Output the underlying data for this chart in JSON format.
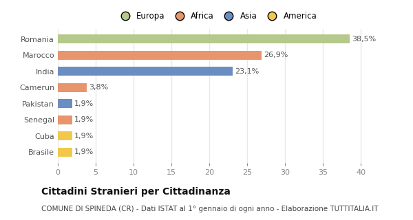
{
  "categories": [
    "Brasile",
    "Cuba",
    "Senegal",
    "Pakistan",
    "Camerun",
    "India",
    "Marocco",
    "Romania"
  ],
  "values": [
    1.9,
    1.9,
    1.9,
    1.9,
    3.8,
    23.1,
    26.9,
    38.5
  ],
  "labels": [
    "1,9%",
    "1,9%",
    "1,9%",
    "1,9%",
    "3,8%",
    "23,1%",
    "26,9%",
    "38,5%"
  ],
  "colors": [
    "#f2c84b",
    "#f2c84b",
    "#e8956d",
    "#6b8ec2",
    "#e8956d",
    "#6b8ec2",
    "#e8956d",
    "#b5c98a"
  ],
  "legend": [
    {
      "label": "Europa",
      "color": "#b5c98a"
    },
    {
      "label": "Africa",
      "color": "#e8956d"
    },
    {
      "label": "Asia",
      "color": "#6b8ec2"
    },
    {
      "label": "America",
      "color": "#f2c84b"
    }
  ],
  "xlim": [
    0,
    42
  ],
  "xticks": [
    0,
    5,
    10,
    15,
    20,
    25,
    30,
    35,
    40
  ],
  "title": "Cittadini Stranieri per Cittadinanza",
  "subtitle": "COMUNE DI SPINEDA (CR) - Dati ISTAT al 1° gennaio di ogni anno - Elaborazione TUTTITALIA.IT",
  "bg_color": "#ffffff",
  "plot_bg_color": "#ffffff",
  "grid_color": "#e8e8e8",
  "title_fontsize": 10,
  "subtitle_fontsize": 7.5,
  "label_fontsize": 8,
  "tick_fontsize": 8,
  "bar_height": 0.55
}
